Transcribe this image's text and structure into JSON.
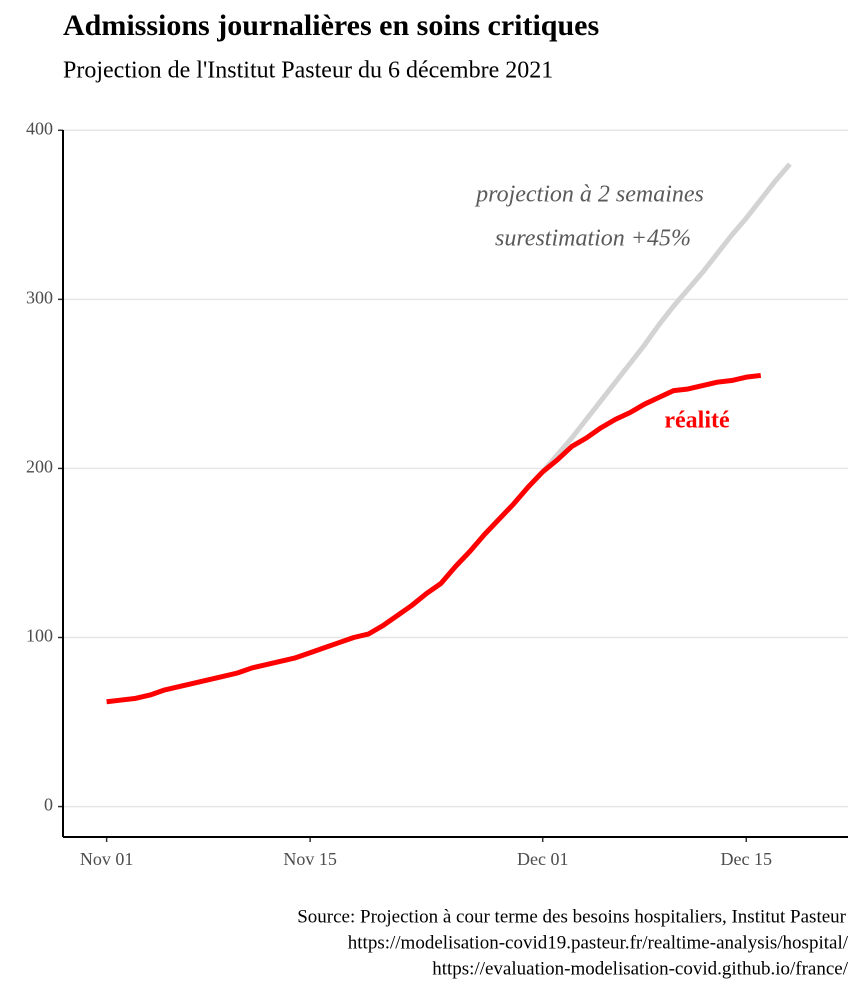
{
  "chart_data": {
    "type": "line",
    "title": "Admissions journalières en soins critiques",
    "subtitle": "Projection de l'Institut Pasteur du 6 décembre 2021",
    "caption": [
      "Source: Projection à cour terme des besoins hospitaliers, Institut Pasteur",
      "https://modelisation-covid19.pasteur.fr/realtime-analysis/hospital/",
      "https://evaluation-modelisation-covid.github.io/france/"
    ],
    "annotations": [
      "projection à 2 semaines",
      "surestimation +45%",
      "réalité"
    ],
    "x": [
      "11-01",
      "11-02",
      "11-03",
      "11-04",
      "11-05",
      "11-06",
      "11-07",
      "11-08",
      "11-09",
      "11-10",
      "11-11",
      "11-12",
      "11-13",
      "11-14",
      "11-15",
      "11-16",
      "11-17",
      "11-18",
      "11-19",
      "11-20",
      "11-21",
      "11-22",
      "11-23",
      "11-24",
      "11-25",
      "11-26",
      "11-27",
      "11-28",
      "11-29",
      "11-30",
      "12-01",
      "12-02",
      "12-03",
      "12-04",
      "12-05",
      "12-06",
      "12-07",
      "12-08",
      "12-09",
      "12-10",
      "12-11",
      "12-12",
      "12-13",
      "12-14",
      "12-15",
      "12-16",
      "12-17",
      "12-18"
    ],
    "series": [
      {
        "name": "projection",
        "color": "#d3d3d3",
        "values": [
          null,
          null,
          null,
          null,
          null,
          null,
          null,
          null,
          null,
          null,
          null,
          null,
          null,
          null,
          null,
          null,
          null,
          null,
          null,
          null,
          null,
          null,
          null,
          null,
          null,
          null,
          null,
          null,
          null,
          null,
          198,
          208,
          218,
          229,
          240,
          251,
          262,
          273,
          285,
          296,
          306,
          316,
          327,
          338,
          348,
          359,
          370,
          380
        ]
      },
      {
        "name": "réalité",
        "color": "#ff0000",
        "values": [
          62,
          63,
          64,
          66,
          69,
          71,
          73,
          75,
          77,
          79,
          82,
          84,
          86,
          88,
          91,
          94,
          97,
          100,
          102,
          107,
          113,
          119,
          126,
          132,
          142,
          151,
          161,
          170,
          179,
          189,
          198,
          205,
          213,
          218,
          224,
          229,
          233,
          238,
          242,
          246,
          247,
          249,
          251,
          252,
          254,
          255,
          null,
          null
        ]
      }
    ],
    "xlim": [
      "10-29",
      "12-22"
    ],
    "xticks": [
      {
        "value": "11-01",
        "label": "Nov 01"
      },
      {
        "value": "11-15",
        "label": "Nov 15"
      },
      {
        "value": "12-01",
        "label": "Dec 01"
      },
      {
        "value": "12-15",
        "label": "Dec 15"
      }
    ],
    "ylim": [
      -18,
      412
    ],
    "yticks": [
      0,
      100,
      200,
      300,
      400
    ],
    "grid": true
  }
}
